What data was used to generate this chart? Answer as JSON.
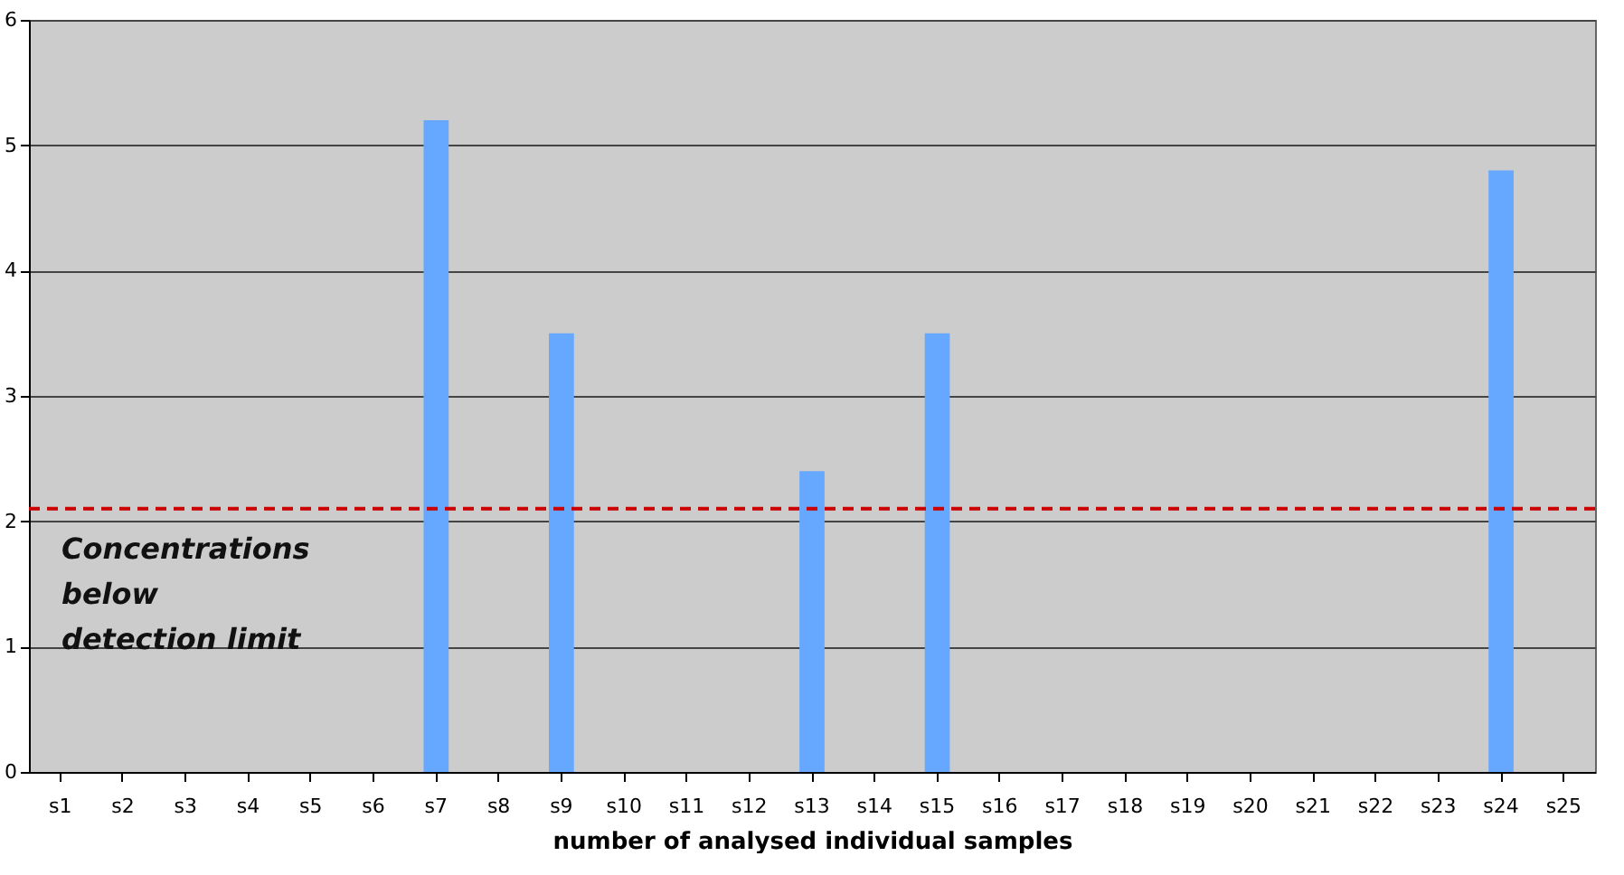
{
  "chart_data": {
    "type": "bar",
    "xlabel": "number of analysed individual samples",
    "categories": [
      "s1",
      "s2",
      "s3",
      "s4",
      "s5",
      "s6",
      "s7",
      "s8",
      "s9",
      "s10",
      "s11",
      "s12",
      "s13",
      "s14",
      "s15",
      "s16",
      "s17",
      "s18",
      "s19",
      "s20",
      "s21",
      "s22",
      "s23",
      "s24",
      "s25"
    ],
    "values": [
      null,
      null,
      null,
      null,
      null,
      null,
      5.2,
      null,
      3.5,
      null,
      null,
      null,
      2.4,
      null,
      3.5,
      null,
      null,
      null,
      null,
      null,
      null,
      null,
      null,
      4.8,
      null
    ],
    "color": "#66a8ff",
    "ylim": [
      0,
      6
    ],
    "yticks": [
      0,
      1,
      2,
      3,
      4,
      5,
      6
    ],
    "grid": "y",
    "ref_lines": [
      {
        "axis": "y",
        "value": 2.1,
        "color": "#cc0000",
        "line_style": "dashed"
      }
    ],
    "annotations": [
      "Concentrations\nbelow\ndetection limit"
    ]
  }
}
